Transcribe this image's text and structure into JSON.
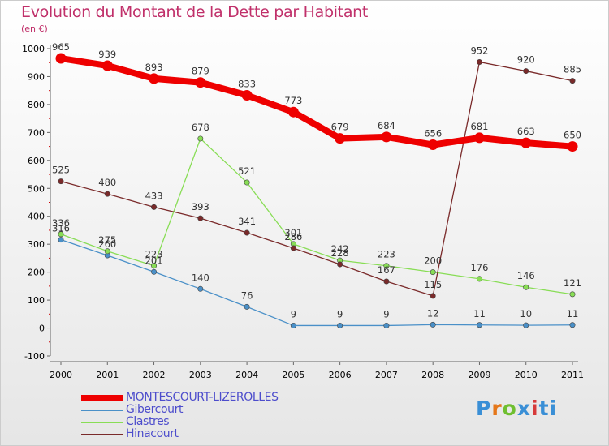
{
  "header": {
    "title": "Evolution du Montant de la Dette par Habitant",
    "subtitle": "(en €)"
  },
  "logo": {
    "text": "Proxiti",
    "colors": [
      "#3a8fd6",
      "#e5771a",
      "#6fbf30",
      "#3a8fd6",
      "#d63a3a",
      "#3a8fd6",
      "#3a8fd6"
    ]
  },
  "chart_data": {
    "type": "line",
    "title": "Evolution du Montant de la Dette par Habitant",
    "ylabel": "(en €)",
    "xlabel": "",
    "x": [
      "2000",
      "2001",
      "2002",
      "2003",
      "2004",
      "2005",
      "2006",
      "2007",
      "2008",
      "2009",
      "2010",
      "2011"
    ],
    "ylim": [
      -100,
      1000
    ],
    "yticks": [
      "-100",
      "0",
      "100",
      "200",
      "300",
      "400",
      "500",
      "600",
      "700",
      "800",
      "900",
      "1000"
    ],
    "grid": false,
    "legend": "bottom-left",
    "series": [
      {
        "name": "MONTESCOURT-LIZEROLLES",
        "color": "#ee0000",
        "values": [
          965,
          939,
          893,
          879,
          833,
          773,
          679,
          684,
          656,
          681,
          663,
          650
        ]
      },
      {
        "name": "Gibercourt",
        "color": "#4a90c8",
        "values": [
          316,
          260,
          201,
          140,
          76,
          9,
          9,
          9,
          12,
          11,
          10,
          11
        ]
      },
      {
        "name": "Clastres",
        "color": "#88dd55",
        "values": [
          336,
          275,
          223,
          678,
          521,
          301,
          242,
          223,
          200,
          176,
          146,
          121
        ]
      },
      {
        "name": "Hinacourt",
        "color": "#7a2a2a",
        "values": [
          525,
          480,
          433,
          393,
          341,
          286,
          228,
          167,
          115,
          952,
          920,
          885
        ]
      }
    ]
  }
}
